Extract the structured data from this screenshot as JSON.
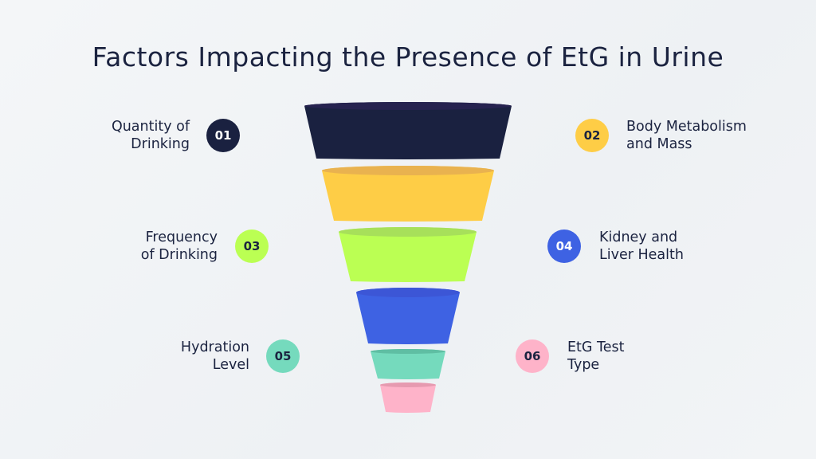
{
  "title": "Factors Impacting the Presence of EtG in Urine",
  "factors": [
    {
      "number": "01",
      "line1": "Quantity of",
      "line2": "Drinking",
      "color": "#1a2140",
      "text_color": "#ffffff"
    },
    {
      "number": "02",
      "line1": "Body Metabolism",
      "line2": "and Mass",
      "color": "#fecd46",
      "text_color": "#1b2340"
    },
    {
      "number": "03",
      "line1": "Frequency",
      "line2": "of Drinking",
      "color": "#bbff53",
      "text_color": "#1b2340"
    },
    {
      "number": "04",
      "line1": "Kidney and",
      "line2": "Liver Health",
      "color": "#3e62e3",
      "text_color": "#ffffff"
    },
    {
      "number": "05",
      "line1": "Hydration",
      "line2": "Level",
      "color": "#75dabd",
      "text_color": "#1b2340"
    },
    {
      "number": "06",
      "line1": "EtG Test",
      "line2": "Type",
      "color": "#feb3c9",
      "text_color": "#1b2340"
    }
  ],
  "funnel_top_shades": [
    "#26224f",
    "#e9b24f",
    "#a7e05a",
    "#3c56d6",
    "#5fbea3",
    "#e69ab0"
  ]
}
